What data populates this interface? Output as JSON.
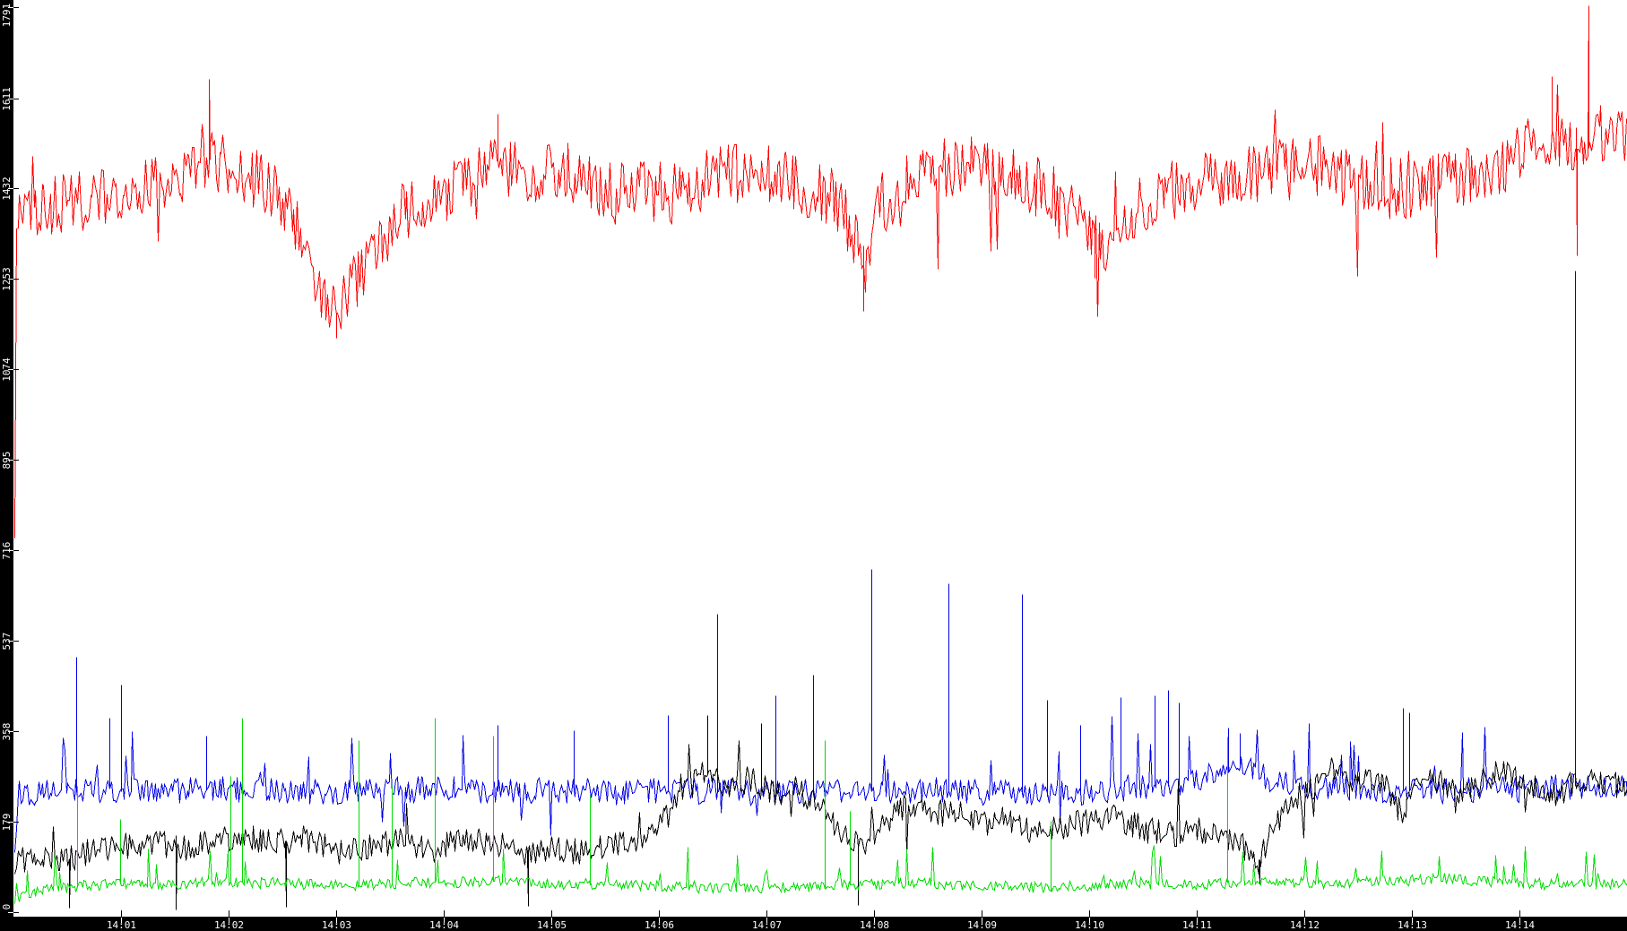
{
  "chart_data": {
    "type": "line",
    "title": "",
    "grid": false,
    "legend": "none",
    "colors": {
      "background": "#ffffff",
      "axis_bar": "#000000",
      "tick_inside": "#ffffff",
      "tick_outside": "#000000",
      "tick_label": "#ffffff"
    },
    "x_axis": {
      "tick_labels": [
        "14:01",
        "14:02",
        "14:03",
        "14:04",
        "14:05",
        "14:06",
        "14:07",
        "14:08",
        "14:09",
        "14:10",
        "14:11",
        "14:12",
        "14:13",
        "14:14"
      ],
      "start_time": "14:00",
      "end_time": "14:15"
    },
    "y_axis": {
      "ticks": [
        0,
        179,
        358,
        537,
        716,
        895,
        1074,
        1253,
        1432,
        1611,
        1791
      ],
      "min": 0,
      "max": 1791
    },
    "series": [
      {
        "name": "red",
        "color": "#ff0000",
        "seed": 1137,
        "noise_amp": 62,
        "tails": [
          {
            "p": 0.018,
            "lo": 60,
            "hi": 170,
            "dir": -1
          },
          {
            "p": 0.012,
            "lo": 40,
            "hi": 110,
            "dir": 1
          }
        ],
        "anchors": [
          [
            0,
            120
          ],
          [
            0.017,
            1360
          ],
          [
            0.3,
            1400
          ],
          [
            0.8,
            1415
          ],
          [
            1.2,
            1430
          ],
          [
            1.6,
            1448
          ],
          [
            1.85,
            1495
          ],
          [
            2.05,
            1462
          ],
          [
            2.3,
            1450
          ],
          [
            2.55,
            1400
          ],
          [
            2.7,
            1320
          ],
          [
            2.85,
            1235
          ],
          [
            3.0,
            1185
          ],
          [
            3.1,
            1220
          ],
          [
            3.25,
            1275
          ],
          [
            3.45,
            1340
          ],
          [
            3.65,
            1395
          ],
          [
            3.9,
            1420
          ],
          [
            4.2,
            1442
          ],
          [
            4.5,
            1488
          ],
          [
            4.8,
            1452
          ],
          [
            5.1,
            1470
          ],
          [
            5.35,
            1452
          ],
          [
            5.6,
            1418
          ],
          [
            5.8,
            1432
          ],
          [
            6.1,
            1422
          ],
          [
            6.4,
            1450
          ],
          [
            6.7,
            1460
          ],
          [
            7.0,
            1470
          ],
          [
            7.3,
            1442
          ],
          [
            7.6,
            1420
          ],
          [
            7.8,
            1345
          ],
          [
            7.92,
            1270
          ],
          [
            8.05,
            1400
          ],
          [
            8.3,
            1450
          ],
          [
            8.6,
            1468
          ],
          [
            8.9,
            1485
          ],
          [
            9.1,
            1478
          ],
          [
            9.35,
            1450
          ],
          [
            9.6,
            1428
          ],
          [
            9.8,
            1392
          ],
          [
            10.0,
            1348
          ],
          [
            10.15,
            1325
          ],
          [
            10.35,
            1382
          ],
          [
            10.6,
            1415
          ],
          [
            10.9,
            1440
          ],
          [
            11.2,
            1458
          ],
          [
            11.5,
            1465
          ],
          [
            11.8,
            1470
          ],
          [
            12.1,
            1480
          ],
          [
            12.4,
            1456
          ],
          [
            12.7,
            1446
          ],
          [
            13.0,
            1432
          ],
          [
            13.3,
            1450
          ],
          [
            13.6,
            1462
          ],
          [
            13.9,
            1492
          ],
          [
            14.15,
            1520
          ],
          [
            14.3,
            1548
          ],
          [
            14.45,
            1522
          ],
          [
            14.6,
            1502
          ],
          [
            14.75,
            1545
          ],
          [
            14.9,
            1555
          ],
          [
            15,
            1535
          ]
        ],
        "spikes": [
          [
            1.82,
            1650
          ],
          [
            3.0,
            1137
          ],
          [
            4.5,
            1580
          ],
          [
            7.9,
            1190
          ],
          [
            10.05,
            1256
          ],
          [
            14.3,
            1655
          ],
          [
            14.53,
            1300
          ],
          [
            14.64,
            1795
          ]
        ]
      },
      {
        "name": "blue",
        "color": "#0000e8",
        "seed": 2207,
        "noise_amp": 26,
        "tails": [
          {
            "p": 0.03,
            "lo": 40,
            "hi": 120,
            "dir": 1
          },
          {
            "p": 0.012,
            "lo": 30,
            "hi": 70,
            "dir": -1
          }
        ],
        "anchors": [
          [
            0,
            95
          ],
          [
            0.04,
            235
          ],
          [
            0.5,
            240
          ],
          [
            1,
            245
          ],
          [
            1.5,
            242
          ],
          [
            2,
            245
          ],
          [
            2.5,
            240
          ],
          [
            3,
            238
          ],
          [
            3.5,
            242
          ],
          [
            4,
            245
          ],
          [
            4.5,
            240
          ],
          [
            5,
            243
          ],
          [
            5.5,
            238
          ],
          [
            6,
            242
          ],
          [
            6.5,
            240
          ],
          [
            7,
            238
          ],
          [
            7.5,
            244
          ],
          [
            8,
            240
          ],
          [
            8.5,
            243
          ],
          [
            9,
            238
          ],
          [
            9.5,
            235
          ],
          [
            10,
            240
          ],
          [
            10.3,
            246
          ],
          [
            10.6,
            252
          ],
          [
            10.9,
            260
          ],
          [
            11.1,
            268
          ],
          [
            11.3,
            292
          ],
          [
            11.45,
            285
          ],
          [
            11.6,
            270
          ],
          [
            11.8,
            255
          ],
          [
            12,
            250
          ],
          [
            12.3,
            246
          ],
          [
            12.6,
            244
          ],
          [
            13,
            242
          ],
          [
            13.4,
            240
          ],
          [
            13.8,
            244
          ],
          [
            14.2,
            246
          ],
          [
            14.6,
            250
          ],
          [
            15,
            252
          ]
        ],
        "spikes": [
          [
            0.583,
            505
          ],
          [
            0.892,
            385
          ],
          [
            1.0,
            450
          ],
          [
            1.792,
            350
          ],
          [
            4.5,
            370
          ],
          [
            5.208,
            360
          ],
          [
            6.083,
            390
          ],
          [
            6.542,
            590
          ],
          [
            7.083,
            430
          ],
          [
            7.433,
            470
          ],
          [
            7.975,
            680
          ],
          [
            8.692,
            650
          ],
          [
            9.375,
            630
          ],
          [
            9.608,
            420
          ],
          [
            9.917,
            370
          ],
          [
            10.292,
            425
          ],
          [
            10.608,
            430
          ],
          [
            10.733,
            440
          ],
          [
            10.833,
            415
          ],
          [
            11.292,
            365
          ],
          [
            11.4,
            355
          ],
          [
            12.917,
            405
          ],
          [
            12.975,
            395
          ],
          [
            14.517,
            1270
          ]
        ]
      },
      {
        "name": "black",
        "color": "#000000",
        "seed": 3319,
        "noise_amp": 27,
        "tails": [
          {
            "p": 0.015,
            "lo": 40,
            "hi": 90,
            "dir": -1
          },
          {
            "p": 0.012,
            "lo": 30,
            "hi": 80,
            "dir": 1
          }
        ],
        "anchors": [
          [
            0,
            100
          ],
          [
            0.25,
            115
          ],
          [
            0.5,
            105
          ],
          [
            0.7,
            120
          ],
          [
            1.0,
            130
          ],
          [
            1.3,
            140
          ],
          [
            1.55,
            125
          ],
          [
            1.8,
            140
          ],
          [
            2.1,
            150
          ],
          [
            2.4,
            140
          ],
          [
            2.7,
            145
          ],
          [
            3.0,
            120
          ],
          [
            3.3,
            130
          ],
          [
            3.6,
            140
          ],
          [
            3.9,
            125
          ],
          [
            4.2,
            145
          ],
          [
            4.5,
            135
          ],
          [
            4.75,
            120
          ],
          [
            5.0,
            125
          ],
          [
            5.3,
            120
          ],
          [
            5.6,
            135
          ],
          [
            5.9,
            150
          ],
          [
            6.15,
            210
          ],
          [
            6.4,
            280
          ],
          [
            6.6,
            250
          ],
          [
            6.85,
            265
          ],
          [
            7.05,
            235
          ],
          [
            7.25,
            250
          ],
          [
            7.5,
            205
          ],
          [
            7.7,
            160
          ],
          [
            7.9,
            120
          ],
          [
            8.1,
            180
          ],
          [
            8.3,
            215
          ],
          [
            8.5,
            190
          ],
          [
            8.75,
            205
          ],
          [
            9.0,
            175
          ],
          [
            9.25,
            185
          ],
          [
            9.5,
            160
          ],
          [
            9.75,
            170
          ],
          [
            10.0,
            180
          ],
          [
            10.25,
            190
          ],
          [
            10.5,
            165
          ],
          [
            10.75,
            155
          ],
          [
            11.0,
            165
          ],
          [
            11.2,
            150
          ],
          [
            11.4,
            140
          ],
          [
            11.55,
            90
          ],
          [
            11.7,
            160
          ],
          [
            11.85,
            215
          ],
          [
            12.0,
            245
          ],
          [
            12.15,
            270
          ],
          [
            12.3,
            290
          ],
          [
            12.45,
            255
          ],
          [
            12.6,
            275
          ],
          [
            12.75,
            250
          ],
          [
            12.9,
            195
          ],
          [
            13.05,
            245
          ],
          [
            13.2,
            265
          ],
          [
            13.4,
            235
          ],
          [
            13.6,
            255
          ],
          [
            13.8,
            275
          ],
          [
            14.0,
            265
          ],
          [
            14.2,
            240
          ],
          [
            14.35,
            225
          ],
          [
            14.5,
            260
          ],
          [
            14.65,
            270
          ],
          [
            14.8,
            250
          ],
          [
            15,
            255
          ]
        ],
        "spikes": [
          [
            0.52,
            8
          ],
          [
            1.51,
            5
          ],
          [
            2.53,
            10
          ],
          [
            4.78,
            12
          ],
          [
            6.45,
            390
          ],
          [
            6.95,
            375
          ],
          [
            7.85,
            15
          ],
          [
            11.58,
            55
          ]
        ]
      },
      {
        "name": "green",
        "color": "#00dc00",
        "seed": 4493,
        "noise_amp": 11,
        "tails": [
          {
            "p": 0.045,
            "lo": 25,
            "hi": 75,
            "dir": 1
          }
        ],
        "anchors": [
          [
            0,
            25
          ],
          [
            0.3,
            45
          ],
          [
            0.6,
            52
          ],
          [
            1,
            58
          ],
          [
            1.5,
            56
          ],
          [
            2,
            60
          ],
          [
            2.5,
            58
          ],
          [
            3,
            54
          ],
          [
            3.5,
            57
          ],
          [
            4,
            60
          ],
          [
            4.5,
            62
          ],
          [
            5,
            58
          ],
          [
            5.5,
            55
          ],
          [
            6,
            52
          ],
          [
            6.5,
            50
          ],
          [
            7,
            48
          ],
          [
            7.5,
            52
          ],
          [
            8,
            56
          ],
          [
            8.5,
            58
          ],
          [
            9,
            54
          ],
          [
            9.5,
            50
          ],
          [
            10,
            54
          ],
          [
            10.5,
            58
          ],
          [
            11,
            56
          ],
          [
            11.5,
            60
          ],
          [
            12,
            58
          ],
          [
            12.5,
            60
          ],
          [
            13,
            64
          ],
          [
            13.3,
            68
          ],
          [
            13.6,
            62
          ],
          [
            14,
            58
          ],
          [
            14.5,
            56
          ],
          [
            15,
            58
          ]
        ],
        "spikes": [
          [
            0.592,
            250
          ],
          [
            0.992,
            185
          ],
          [
            2.017,
            270
          ],
          [
            2.125,
            385
          ],
          [
            3.208,
            340
          ],
          [
            3.517,
            250
          ],
          [
            3.917,
            385
          ],
          [
            4.458,
            350
          ],
          [
            5.358,
            230
          ],
          [
            7.542,
            340
          ],
          [
            7.775,
            200
          ],
          [
            9.642,
            180
          ],
          [
            11.283,
            348
          ]
        ]
      }
    ]
  }
}
